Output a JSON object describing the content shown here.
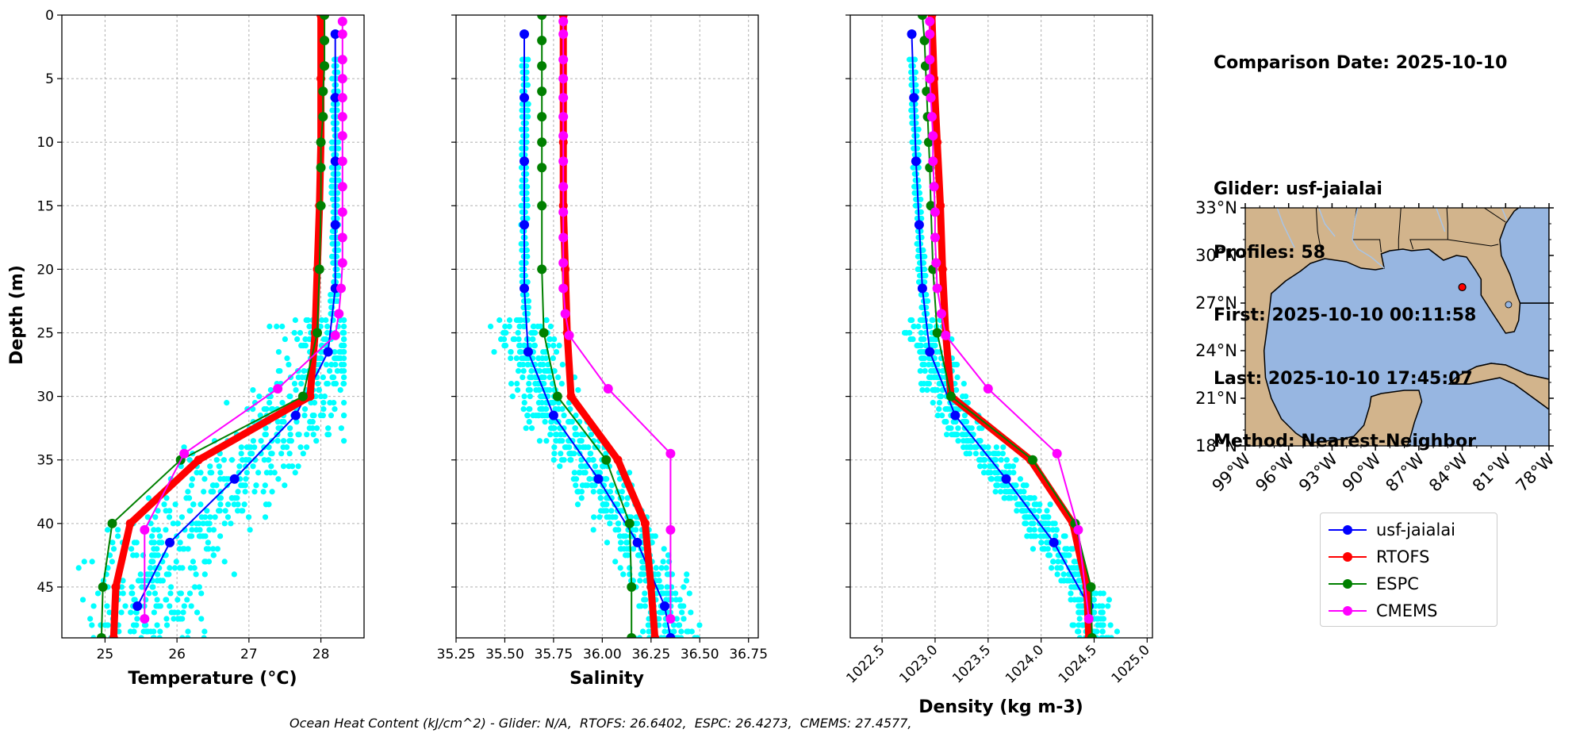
{
  "info": {
    "lines": [
      "Comparison Date: 2025-10-10",
      "",
      "Glider: usf-jaialai",
      "Profiles: 58",
      "First: 2025-10-10 00:11:58",
      "Last: 2025-10-10 17:45:07",
      "Method: Nearest-Neighbor"
    ]
  },
  "footer": "Ocean Heat Content (kJ/cm^2) - Glider: N/A,  RTOFS: 26.6402,  ESPC: 26.4273,  CMEMS: 27.4577,",
  "legend": [
    {
      "name": "usf-jaialai",
      "color": "#0000ff"
    },
    {
      "name": "RTOFS",
      "color": "#ff0000"
    },
    {
      "name": "ESPC",
      "color": "#008000"
    },
    {
      "name": "CMEMS",
      "color": "#ff00ff"
    }
  ],
  "chart_data": [
    {
      "type": "line",
      "xlabel": "Temperature (°C)",
      "ylabel": "Depth (m)",
      "xlim": [
        24.4,
        28.6
      ],
      "ylim": [
        49,
        0
      ],
      "x_ticks": [
        25,
        26,
        27,
        28
      ],
      "y_ticks": [
        0,
        5,
        10,
        15,
        20,
        25,
        30,
        35,
        40,
        45
      ],
      "grid": true,
      "series": [
        {
          "name": "usf-jaialai",
          "color": "#0000ff",
          "depth": [
            1.5,
            6.5,
            11.5,
            16.5,
            21.5,
            26.5,
            31.5,
            36.5,
            41.5,
            46.5
          ],
          "values": [
            28.2,
            28.2,
            28.2,
            28.2,
            28.2,
            28.1,
            27.65,
            26.8,
            25.9,
            25.45
          ]
        },
        {
          "name": "RTOFS",
          "color": "#ff0000",
          "depth": [
            0,
            5,
            10,
            15,
            20,
            25,
            30,
            35,
            40,
            45,
            49
          ],
          "values": [
            28.0,
            28.0,
            28.0,
            27.98,
            27.95,
            27.92,
            27.85,
            26.3,
            25.35,
            25.15,
            25.12
          ]
        },
        {
          "name": "ESPC",
          "color": "#008000",
          "depth": [
            0,
            2,
            4,
            6,
            8,
            10,
            12,
            15,
            20,
            25,
            30,
            35,
            40,
            45,
            49
          ],
          "values": [
            28.05,
            28.05,
            28.05,
            28.03,
            28.03,
            28.0,
            28.0,
            28.0,
            27.98,
            27.95,
            27.75,
            26.05,
            25.1,
            24.97,
            24.95
          ]
        },
        {
          "name": "CMEMS",
          "color": "#ff00ff",
          "depth": [
            0.5,
            1.5,
            3.5,
            5,
            6.5,
            8,
            9.5,
            11.5,
            13.5,
            15.5,
            17.5,
            19.5,
            21.5,
            23.5,
            25.2,
            29.4,
            34.5,
            40.5,
            47.5
          ],
          "values": [
            28.3,
            28.3,
            28.3,
            28.3,
            28.3,
            28.3,
            28.3,
            28.3,
            28.3,
            28.3,
            28.3,
            28.3,
            28.28,
            28.25,
            28.2,
            27.4,
            26.1,
            25.55,
            25.55
          ]
        }
      ]
    },
    {
      "type": "line",
      "xlabel": "Salinity",
      "ylim": [
        49,
        0
      ],
      "xlim": [
        35.25,
        36.8
      ],
      "x_ticks": [
        35.25,
        35.5,
        35.75,
        36.0,
        36.25,
        36.5,
        36.75
      ],
      "x_tick_labels": [
        "35.25",
        "35.50",
        "35.75",
        "36.00",
        "36.25",
        "36.50",
        "36.75"
      ],
      "grid": true,
      "series": [
        {
          "name": "usf-jaialai",
          "color": "#0000ff",
          "depth": [
            1.5,
            6.5,
            11.5,
            16.5,
            21.5,
            26.5,
            31.5,
            36.5,
            41.5,
            46.5,
            49
          ],
          "values": [
            35.6,
            35.6,
            35.6,
            35.6,
            35.6,
            35.62,
            35.75,
            35.98,
            36.18,
            36.32,
            36.35
          ]
        },
        {
          "name": "RTOFS",
          "color": "#ff0000",
          "depth": [
            0,
            5,
            10,
            15,
            20,
            25,
            30,
            35,
            40,
            45,
            49
          ],
          "values": [
            35.8,
            35.8,
            35.8,
            35.8,
            35.81,
            35.82,
            35.84,
            36.08,
            36.22,
            36.25,
            36.27
          ]
        },
        {
          "name": "ESPC",
          "color": "#008000",
          "depth": [
            0,
            2,
            4,
            6,
            8,
            10,
            12,
            15,
            20,
            25,
            30,
            35,
            40,
            45,
            49
          ],
          "values": [
            35.69,
            35.69,
            35.69,
            35.69,
            35.69,
            35.69,
            35.69,
            35.69,
            35.69,
            35.7,
            35.77,
            36.02,
            36.14,
            36.15,
            36.15
          ]
        },
        {
          "name": "CMEMS",
          "color": "#ff00ff",
          "depth": [
            0.5,
            1.5,
            3.5,
            5,
            6.5,
            8,
            9.5,
            11.5,
            13.5,
            15.5,
            17.5,
            19.5,
            21.5,
            23.5,
            25.2,
            29.4,
            34.5,
            40.5,
            47.5
          ],
          "values": [
            35.8,
            35.8,
            35.8,
            35.8,
            35.8,
            35.8,
            35.8,
            35.8,
            35.8,
            35.8,
            35.8,
            35.8,
            35.8,
            35.81,
            35.83,
            36.03,
            36.35,
            36.35,
            36.35
          ]
        }
      ]
    },
    {
      "type": "line",
      "xlabel": "Density (kg m-3)",
      "ylim": [
        49,
        0
      ],
      "xlim": [
        1022.2,
        1025.05
      ],
      "x_ticks": [
        1022.5,
        1023.0,
        1023.5,
        1024.0,
        1024.5,
        1025.0
      ],
      "x_tick_labels": [
        "1022.5",
        "1023.0",
        "1023.5",
        "1024.0",
        "1024.5",
        "1025.0"
      ],
      "grid": true,
      "series": [
        {
          "name": "usf-jaialai",
          "color": "#0000ff",
          "depth": [
            1.5,
            6.5,
            11.5,
            16.5,
            21.5,
            26.5,
            31.5,
            36.5,
            41.5,
            46.5,
            49
          ],
          "values": [
            1022.78,
            1022.8,
            1022.82,
            1022.85,
            1022.88,
            1022.95,
            1023.19,
            1023.67,
            1024.12,
            1024.45,
            1024.48
          ]
        },
        {
          "name": "RTOFS",
          "color": "#ff0000",
          "depth": [
            0,
            5,
            10,
            15,
            20,
            25,
            30,
            35,
            40,
            45,
            49
          ],
          "values": [
            1022.97,
            1022.99,
            1023.02,
            1023.05,
            1023.07,
            1023.1,
            1023.15,
            1023.9,
            1024.3,
            1024.43,
            1024.45
          ]
        },
        {
          "name": "ESPC",
          "color": "#008000",
          "depth": [
            0,
            2,
            4,
            6,
            8,
            10,
            12,
            15,
            20,
            25,
            30,
            35,
            40,
            45,
            49
          ],
          "values": [
            1022.88,
            1022.9,
            1022.91,
            1022.92,
            1022.93,
            1022.94,
            1022.95,
            1022.96,
            1022.98,
            1023.02,
            1023.15,
            1023.92,
            1024.32,
            1024.47,
            1024.48
          ]
        },
        {
          "name": "CMEMS",
          "color": "#ff00ff",
          "depth": [
            0.5,
            1.5,
            3.5,
            5,
            6.5,
            8,
            9.5,
            11.5,
            13.5,
            15.5,
            17.5,
            19.5,
            21.5,
            23.5,
            25.2,
            29.4,
            34.5,
            40.5,
            47.5
          ],
          "values": [
            1022.95,
            1022.95,
            1022.95,
            1022.95,
            1022.96,
            1022.97,
            1022.98,
            1022.98,
            1022.99,
            1023.0,
            1023.0,
            1023.01,
            1023.02,
            1023.06,
            1023.1,
            1023.5,
            1024.15,
            1024.35,
            1024.45
          ]
        }
      ]
    },
    {
      "type": "map",
      "region": "Gulf of Mexico",
      "lat_range": [
        18,
        33
      ],
      "lon_range": [
        -99,
        -78
      ],
      "lat_ticks": [
        "18°N",
        "21°N",
        "24°N",
        "27°N",
        "30°N",
        "33°N"
      ],
      "lon_ticks": [
        "99°W",
        "96°W",
        "93°W",
        "90°W",
        "87°W",
        "84°W",
        "81°W",
        "78°W"
      ],
      "land_color": "#d2b48c",
      "ocean_color": "#97b6e1",
      "marker": {
        "lat": 28.0,
        "lon": -84.0,
        "color": "#ff0000"
      }
    }
  ]
}
